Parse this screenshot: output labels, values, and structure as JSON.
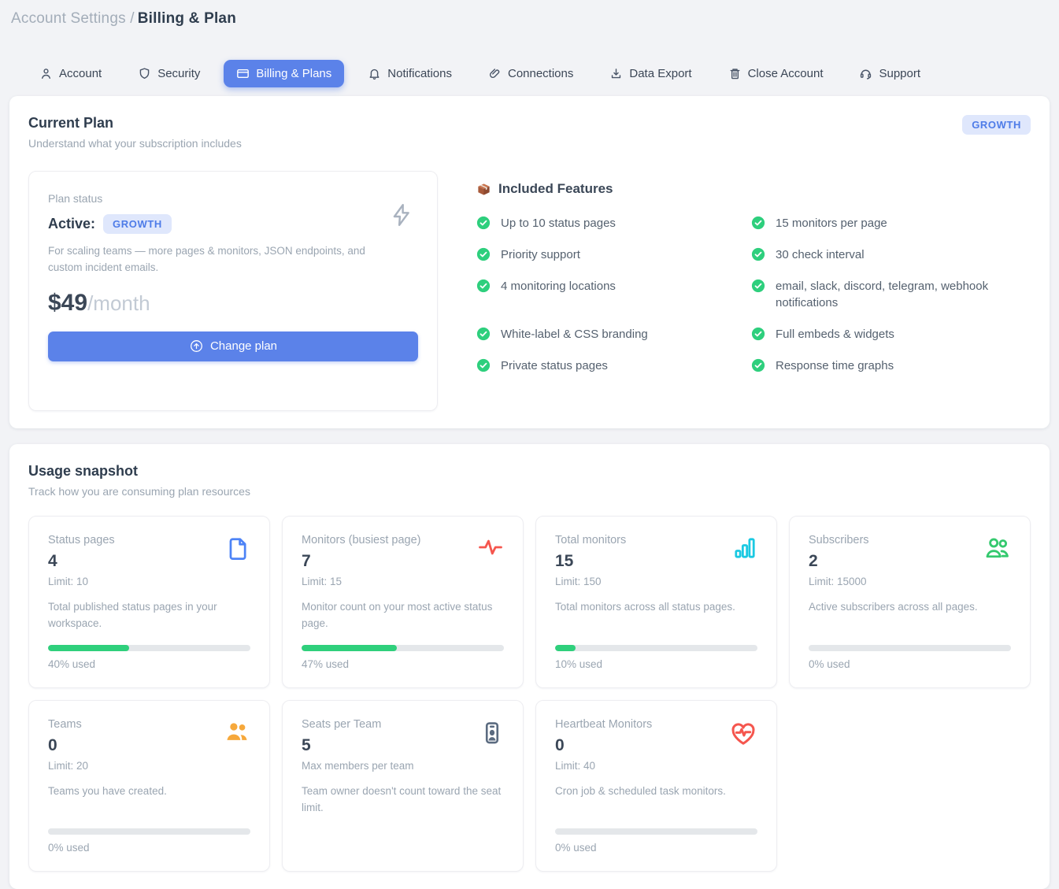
{
  "breadcrumb": {
    "section": "Account Settings /",
    "page": "Billing & Plan"
  },
  "tabs": [
    {
      "label": "Account",
      "icon": "user-icon",
      "active": false
    },
    {
      "label": "Security",
      "icon": "shield-icon",
      "active": false
    },
    {
      "label": "Billing & Plans",
      "icon": "credit-card-icon",
      "active": true
    },
    {
      "label": "Notifications",
      "icon": "bell-icon",
      "active": false
    },
    {
      "label": "Connections",
      "icon": "link-icon",
      "active": false
    },
    {
      "label": "Data Export",
      "icon": "download-icon",
      "active": false
    },
    {
      "label": "Close Account",
      "icon": "trash-icon",
      "active": false
    },
    {
      "label": "Support",
      "icon": "headset-icon",
      "active": false
    }
  ],
  "current_plan": {
    "title": "Current Plan",
    "subtitle": "Understand what your subscription includes",
    "badge": "GROWTH",
    "plan_status": {
      "label": "Plan status",
      "status": "Active:",
      "plan_badge": "GROWTH",
      "description": "For scaling teams — more pages & monitors, JSON endpoints, and custom incident emails.",
      "price": "$49",
      "period": "/month",
      "change_button": "Change plan",
      "corner_icon": "lightning-icon"
    },
    "features": {
      "heading": "Included Features",
      "heading_icon": "package-icon",
      "check_icon": "check-circle-icon",
      "left": [
        "Up to 10 status pages",
        "Priority support",
        "4 monitoring locations",
        "White-label & CSS branding",
        "Private status pages"
      ],
      "right": [
        "15 monitors per page",
        "30 check interval",
        "email, slack, discord, telegram, webhook notifications",
        "Full embeds & widgets",
        "Response time graphs"
      ]
    }
  },
  "usage": {
    "title": "Usage snapshot",
    "subtitle": "Track how you are consuming plan resources",
    "cards": [
      {
        "label": "Status pages",
        "value": "4",
        "limit": "Limit: 10",
        "description": "Total published status pages in your workspace.",
        "percent": 40,
        "percent_label": "40% used",
        "icon": "file-icon",
        "icon_color": "#4d83f6"
      },
      {
        "label": "Monitors (busiest page)",
        "value": "7",
        "limit": "Limit: 15",
        "description": "Monitor count on your most active status page.",
        "percent": 47,
        "percent_label": "47% used",
        "icon": "activity-icon",
        "icon_color": "#f5564e"
      },
      {
        "label": "Total monitors",
        "value": "15",
        "limit": "Limit: 150",
        "description": "Total monitors across all status pages.",
        "percent": 10,
        "percent_label": "10% used",
        "icon": "bar-chart-icon",
        "icon_color": "#1bc9e2"
      },
      {
        "label": "Subscribers",
        "value": "2",
        "limit": "Limit: 15000",
        "description": "Active subscribers across all pages.",
        "percent": 0,
        "percent_label": "0% used",
        "icon": "users-icon",
        "icon_color": "#34c96e"
      },
      {
        "label": "Teams",
        "value": "0",
        "limit": "Limit: 20",
        "description": "Teams you have created.",
        "percent": 0,
        "percent_label": "0% used",
        "icon": "users-filled-icon",
        "icon_color": "#f6a83b"
      },
      {
        "label": "Seats per Team",
        "value": "5",
        "limit": "Max members per team",
        "description": "Team owner doesn't count toward the seat limit.",
        "icon": "id-badge-icon",
        "icon_color": "#5b6b80"
      },
      {
        "label": "Heartbeat Monitors",
        "value": "0",
        "limit": "Limit: 40",
        "description": "Cron job & scheduled task monitors.",
        "percent": 0,
        "percent_label": "0% used",
        "icon": "heart-pulse-icon",
        "icon_color": "#f5564e"
      }
    ]
  },
  "colors": {
    "accent_blue": "#5b82e9",
    "badge_bg": "#dfe7fc",
    "badge_text": "#4e7ce8",
    "success_green": "#2ecf7d",
    "progress_green": "#2fd07c",
    "page_bg": "#f2f3f6"
  }
}
